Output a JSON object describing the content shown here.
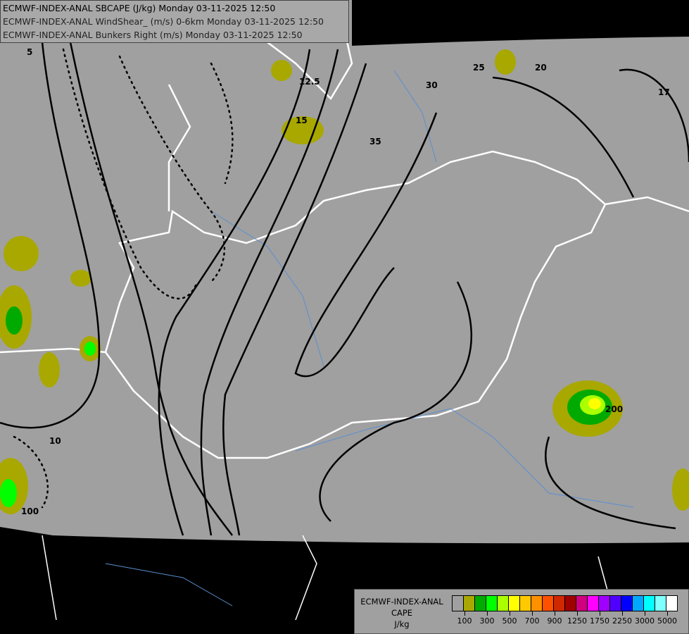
{
  "header": {
    "lines": [
      "ECMWF-INDEX-ANAL SBCAPE (J/kg) Monday 03-11-2025 12:50",
      "ECMWF-INDEX-ANAL WindShear_ (m/s) 0-6km Monday 03-11-2025 12:50",
      "ECMWF-INDEX-ANAL Bunkers Right (m/s) Monday 03-11-2025 12:50"
    ]
  },
  "legend": {
    "title_lines": [
      "ECMWF-INDEX-ANAL",
      "CAPE",
      "J/kg"
    ],
    "colors": [
      "#a0a0a0",
      "#a8a800",
      "#00aa00",
      "#00ff00",
      "#aaff00",
      "#ffff00",
      "#ffc800",
      "#ff9000",
      "#ff5000",
      "#d02800",
      "#a00000",
      "#d00080",
      "#ff00ff",
      "#a000ff",
      "#5000ff",
      "#0000ff",
      "#00a8ff",
      "#00ffff",
      "#80ffff",
      "#ffffff"
    ],
    "labels": [
      "100",
      "300",
      "500",
      "700",
      "900",
      "1250",
      "1750",
      "2250",
      "3000",
      "5000"
    ]
  },
  "map": {
    "domain_color": "#a0a0a0",
    "outside_color": "#000000",
    "border_color": "#ffffff",
    "river_color": "#5a8fd0",
    "contour_labels": [
      "5",
      "10",
      "12.5",
      "15",
      "17",
      "20",
      "25",
      "30",
      "35",
      "100",
      "200"
    ]
  }
}
